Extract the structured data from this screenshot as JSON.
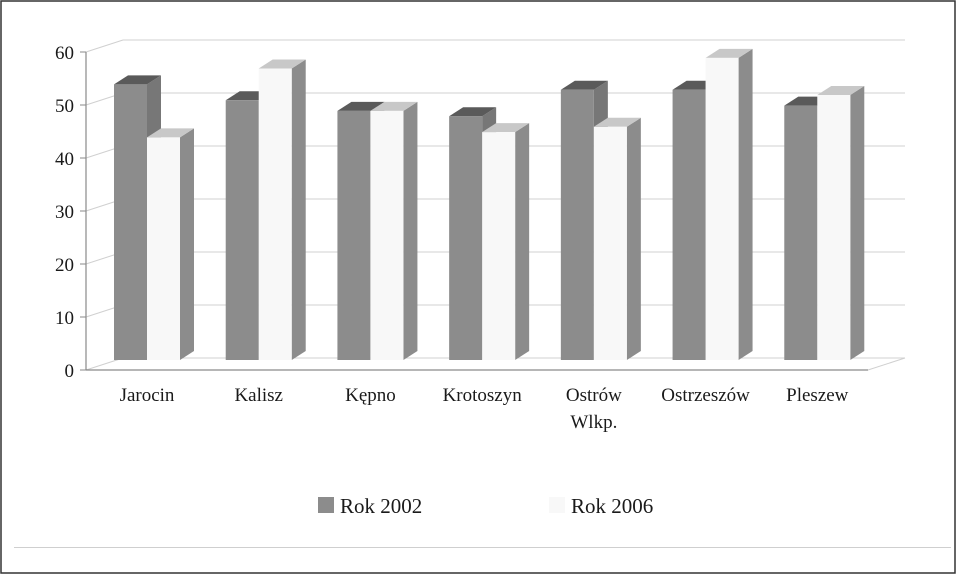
{
  "chart_data": {
    "type": "bar",
    "title": "",
    "xlabel": "",
    "ylabel": "",
    "categories": [
      "Jarocin",
      "Kalisz",
      "Kępno",
      "Krotoszyn",
      "Ostrów Wlkp.",
      "Ostrzeszów",
      "Pleszew"
    ],
    "series": [
      {
        "name": "Rok 2002",
        "values": [
          52,
          49,
          47,
          46,
          51,
          51,
          48
        ]
      },
      {
        "name": "Rok 2006",
        "values": [
          42,
          55,
          47,
          43,
          44,
          57,
          50
        ]
      }
    ],
    "ylim": [
      0,
      60
    ],
    "yticks": [
      0,
      10,
      20,
      30,
      40,
      50,
      60
    ],
    "grid": true,
    "legend": "bottom",
    "three_d": true,
    "colors": {
      "series": [
        "#8c8c8c",
        "#f8f8f8"
      ],
      "series_top": [
        "#5a5a5a",
        "#c8c8c8"
      ],
      "series_side": [
        "#777777",
        "#8c8c8c"
      ],
      "grid": "#d0d0d0",
      "axis": "#8a8a8a",
      "border": "#333333"
    }
  }
}
